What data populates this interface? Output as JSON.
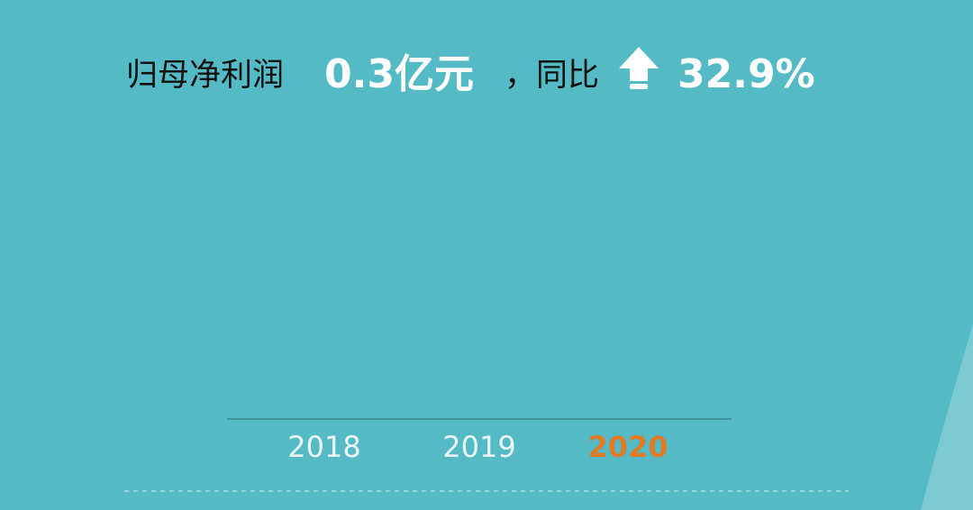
{
  "headline": {
    "label": "归母净利润",
    "value": "0.3亿元",
    "separator": "，同比",
    "change": "32.9%"
  },
  "axis": {
    "categories": [
      "2018",
      "2019",
      "2020"
    ],
    "highlight": "2020"
  }
}
